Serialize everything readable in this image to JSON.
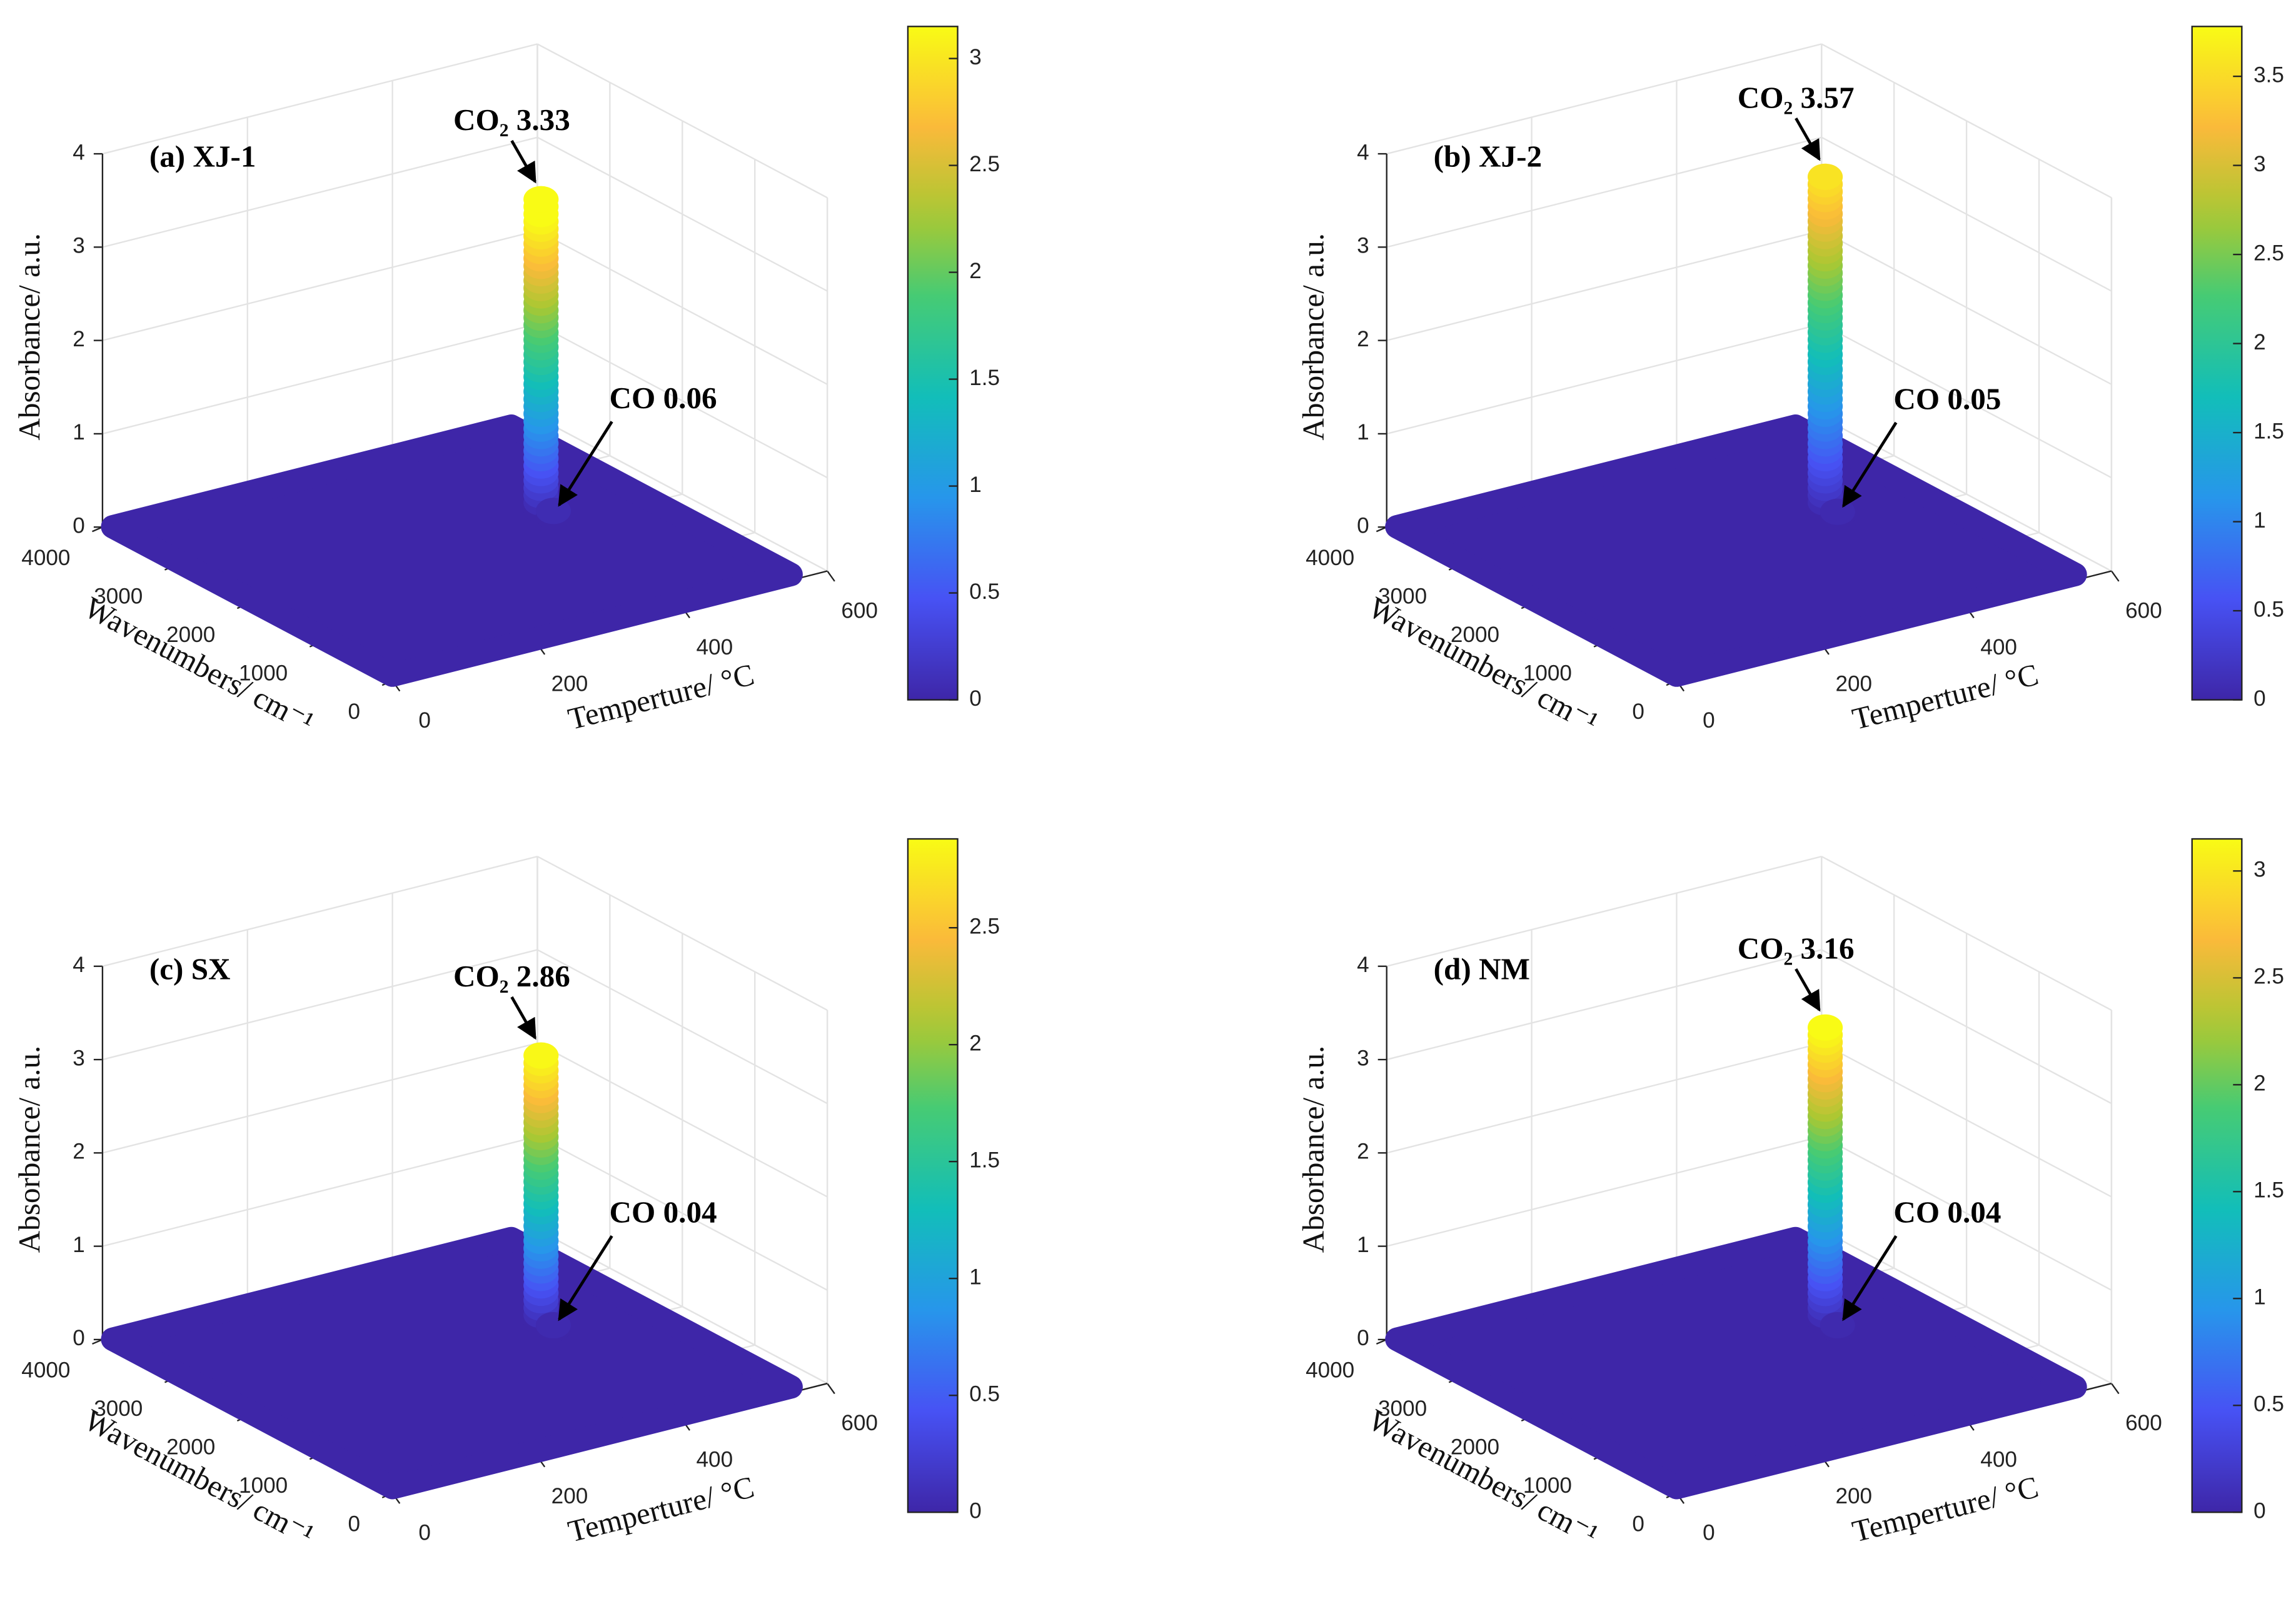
{
  "chart_data": [
    {
      "type": "scatter3d",
      "title": "(a)  XJ-1",
      "xlabel": "Temperture/ °C",
      "ylabel": "Wavenumbers/ cm⁻¹",
      "zlabel": "Absorbance/ a.u.",
      "x": [
        440,
        440
      ],
      "y": [
        2350,
        2180
      ],
      "values": [
        3.33,
        0.06
      ],
      "value_labels": [
        "CO₂ 3.33",
        "CO 0.06"
      ],
      "xlim": [
        0,
        600
      ],
      "xticks": [
        0,
        200,
        400,
        600
      ],
      "ylim": [
        0,
        4000
      ],
      "yticks": [
        0,
        1000,
        2000,
        3000,
        4000
      ],
      "zlim": [
        0,
        4
      ],
      "zticks": [
        0,
        1,
        2,
        3,
        4
      ],
      "grid": true,
      "colormap": "parula",
      "colorbar": {
        "clim": [
          0,
          3.15
        ],
        "ticks": [
          0,
          0.5,
          1,
          1.5,
          2,
          2.5,
          3
        ]
      }
    },
    {
      "type": "scatter3d",
      "title": "(b)  XJ-2",
      "xlabel": "Temperture/ °C",
      "ylabel": "Wavenumbers/ cm⁻¹",
      "zlabel": "Absorbance/ a.u.",
      "x": [
        440,
        440
      ],
      "y": [
        2350,
        2180
      ],
      "values": [
        3.57,
        0.05
      ],
      "value_labels": [
        "CO₂ 3.57",
        "CO 0.05"
      ],
      "xlim": [
        0,
        600
      ],
      "xticks": [
        0,
        200,
        400,
        600
      ],
      "ylim": [
        0,
        4000
      ],
      "yticks": [
        0,
        1000,
        2000,
        3000,
        4000
      ],
      "zlim": [
        0,
        4
      ],
      "zticks": [
        0,
        1,
        2,
        3,
        4
      ],
      "grid": true,
      "colormap": "parula",
      "colorbar": {
        "clim": [
          0,
          3.78
        ],
        "ticks": [
          0,
          0.5,
          1,
          1.5,
          2,
          2.5,
          3,
          3.5
        ]
      }
    },
    {
      "type": "scatter3d",
      "title": "(c)  SX",
      "xlabel": "Temperture/ °C",
      "ylabel": "Wavenumbers/ cm⁻¹",
      "zlabel": "Absorbance/ a.u.",
      "x": [
        440,
        440
      ],
      "y": [
        2350,
        2180
      ],
      "values": [
        2.86,
        0.04
      ],
      "value_labels": [
        "CO₂ 2.86",
        "CO 0.04"
      ],
      "xlim": [
        0,
        600
      ],
      "xticks": [
        0,
        200,
        400,
        600
      ],
      "ylim": [
        0,
        4000
      ],
      "yticks": [
        0,
        1000,
        2000,
        3000,
        4000
      ],
      "zlim": [
        0,
        4
      ],
      "zticks": [
        0,
        1,
        2,
        3,
        4
      ],
      "grid": true,
      "colormap": "parula",
      "colorbar": {
        "clim": [
          0,
          2.88
        ],
        "ticks": [
          0,
          0.5,
          1,
          1.5,
          2,
          2.5
        ]
      }
    },
    {
      "type": "scatter3d",
      "title": "(d)  NM",
      "xlabel": "Temperture/ °C",
      "ylabel": "Wavenumbers/ cm⁻¹",
      "zlabel": "Absorbance/ a.u.",
      "x": [
        440,
        440
      ],
      "y": [
        2350,
        2180
      ],
      "values": [
        3.16,
        0.04
      ],
      "value_labels": [
        "CO₂ 3.16",
        "CO 0.04"
      ],
      "xlim": [
        0,
        600
      ],
      "xticks": [
        0,
        200,
        400,
        600
      ],
      "ylim": [
        0,
        4000
      ],
      "yticks": [
        0,
        1000,
        2000,
        3000,
        4000
      ],
      "zlim": [
        0,
        4
      ],
      "zticks": [
        0,
        1,
        2,
        3,
        4
      ],
      "grid": true,
      "colormap": "parula",
      "colorbar": {
        "clim": [
          0,
          3.15
        ],
        "ticks": [
          0,
          0.5,
          1,
          1.5,
          2,
          2.5,
          3
        ]
      }
    }
  ]
}
